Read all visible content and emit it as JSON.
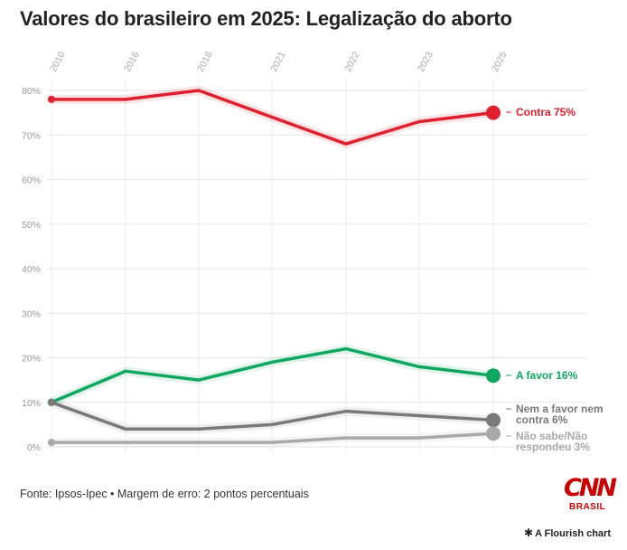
{
  "title": "Valores do brasileiro em 2025: Legalização do aborto",
  "source": "Fonte: Ipsos-Ipec • Margem de erro: 2 pontos percentuais",
  "brand": {
    "logo": "CNN",
    "sub": "BRASIL",
    "color": "#cc0000"
  },
  "credit": {
    "icon": "asterisk-icon",
    "label": "A Flourish chart"
  },
  "chart_data": {
    "type": "line",
    "x": [
      "2010",
      "2016",
      "2018",
      "2021",
      "2022",
      "2023",
      "2025"
    ],
    "y_ticks": [
      "0%",
      "10%",
      "20%",
      "30%",
      "40%",
      "50%",
      "60%",
      "70%",
      "80%"
    ],
    "ylim": [
      0,
      80
    ],
    "grid": true,
    "series": [
      {
        "name": "Contra",
        "end_label": "Contra 75%",
        "color": "#e0202e",
        "values": [
          78,
          78,
          80,
          74,
          68,
          73,
          75
        ]
      },
      {
        "name": "A favor",
        "end_label": "A favor 16%",
        "color": "#10a860",
        "values": [
          10,
          17,
          15,
          19,
          22,
          18,
          16
        ]
      },
      {
        "name": "Nem a favor nem contra",
        "end_label": "Nem a favor nem contra 6%",
        "end_label_lines": [
          "Nem a favor nem",
          "contra 6%"
        ],
        "color": "#7a7a7a",
        "values": [
          10,
          4,
          4,
          5,
          8,
          7,
          6
        ]
      },
      {
        "name": "Não sabe/Não respondeu",
        "end_label": "Não sabe/Não respondeu 3%",
        "end_label_lines": [
          "Não sabe/Não",
          "respondeu 3%"
        ],
        "color": "#a9a9a9",
        "values": [
          1,
          1,
          1,
          1,
          2,
          2,
          3
        ]
      }
    ]
  }
}
